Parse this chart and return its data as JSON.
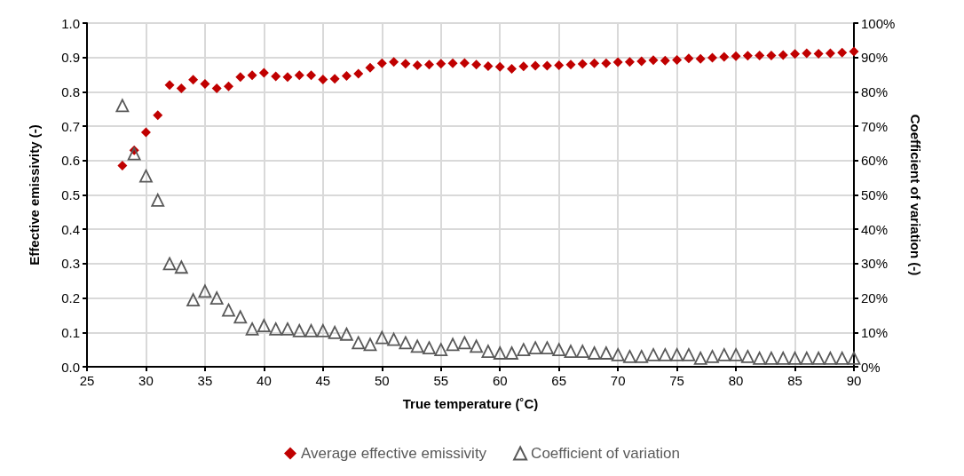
{
  "chart_data": {
    "type": "scatter",
    "xlabel": "True temperature (˚C)",
    "ylabel": "Effective emissivity (-)",
    "y2label": "Coefficient of variation (-)",
    "xlim": [
      25,
      90
    ],
    "xticks": [
      25,
      30,
      35,
      40,
      45,
      50,
      55,
      60,
      65,
      70,
      75,
      80,
      85,
      90
    ],
    "ylim": [
      0,
      1
    ],
    "yticks": [
      {
        "value": 0,
        "label": "0.0"
      },
      0.1,
      0.2,
      0.3,
      0.4,
      0.5,
      0.6,
      0.7,
      0.8,
      0.9,
      {
        "value": 1,
        "label": "1.0"
      }
    ],
    "y2lim": [
      0,
      100
    ],
    "y2ticks": [
      {
        "value": 0,
        "label": "0%"
      },
      {
        "value": 10,
        "label": "10%"
      },
      {
        "value": 20,
        "label": "20%"
      },
      {
        "value": 30,
        "label": "30%"
      },
      {
        "value": 40,
        "label": "40%"
      },
      {
        "value": 50,
        "label": "50%"
      },
      {
        "value": 60,
        "label": "60%"
      },
      {
        "value": 70,
        "label": "70%"
      },
      {
        "value": 80,
        "label": "80%"
      },
      {
        "value": 90,
        "label": "90%"
      },
      {
        "value": 100,
        "label": "100%"
      }
    ],
    "grid": true,
    "legend": "bottom",
    "x": [
      28,
      29,
      30,
      31,
      32,
      33,
      34,
      35,
      36,
      37,
      38,
      39,
      40,
      41,
      42,
      43,
      44,
      45,
      46,
      47,
      48,
      49,
      50,
      51,
      52,
      53,
      54,
      55,
      56,
      57,
      58,
      59,
      60,
      61,
      62,
      63,
      64,
      65,
      66,
      67,
      68,
      69,
      70,
      71,
      72,
      73,
      74,
      75,
      76,
      77,
      78,
      79,
      80,
      81,
      82,
      83,
      84,
      85,
      86,
      87,
      88,
      89,
      90
    ],
    "series": [
      {
        "name": "Average effective emissivity",
        "color": "#c00000",
        "marker": "diamond",
        "values": [
          0.585,
          0.63,
          0.682,
          0.732,
          0.82,
          0.81,
          0.835,
          0.823,
          0.81,
          0.816,
          0.843,
          0.848,
          0.855,
          0.845,
          0.843,
          0.848,
          0.848,
          0.836,
          0.838,
          0.846,
          0.853,
          0.87,
          0.883,
          0.887,
          0.882,
          0.877,
          0.879,
          0.882,
          0.883,
          0.884,
          0.879,
          0.875,
          0.873,
          0.867,
          0.874,
          0.876,
          0.876,
          0.877,
          0.879,
          0.881,
          0.883,
          0.883,
          0.886,
          0.887,
          0.889,
          0.892,
          0.891,
          0.893,
          0.897,
          0.896,
          0.899,
          0.902,
          0.904,
          0.905,
          0.906,
          0.906,
          0.907,
          0.91,
          0.912,
          0.911,
          0.912,
          0.914,
          0.917
        ]
      },
      {
        "name": "Coefficient of variation",
        "color": "#595959",
        "marker": "triangle",
        "axis": "y2",
        "values": [
          76,
          62,
          55.5,
          48.5,
          30,
          29,
          19.5,
          22,
          20,
          16.5,
          14.5,
          11,
          12,
          11,
          11,
          10.5,
          10.5,
          10.5,
          10,
          9.5,
          7,
          6.5,
          8.5,
          8,
          7,
          6,
          5.5,
          5,
          6.5,
          7,
          6,
          4.5,
          4,
          4,
          5,
          5.5,
          5.5,
          5,
          4.5,
          4.5,
          4,
          4,
          3.5,
          3,
          3,
          3.5,
          3.5,
          3.5,
          3.5,
          2.5,
          3,
          3.5,
          3.5,
          3,
          2.5,
          2.5,
          2.5,
          2.5,
          2.5,
          2.5,
          2.5,
          2.5,
          2.5
        ]
      }
    ]
  }
}
